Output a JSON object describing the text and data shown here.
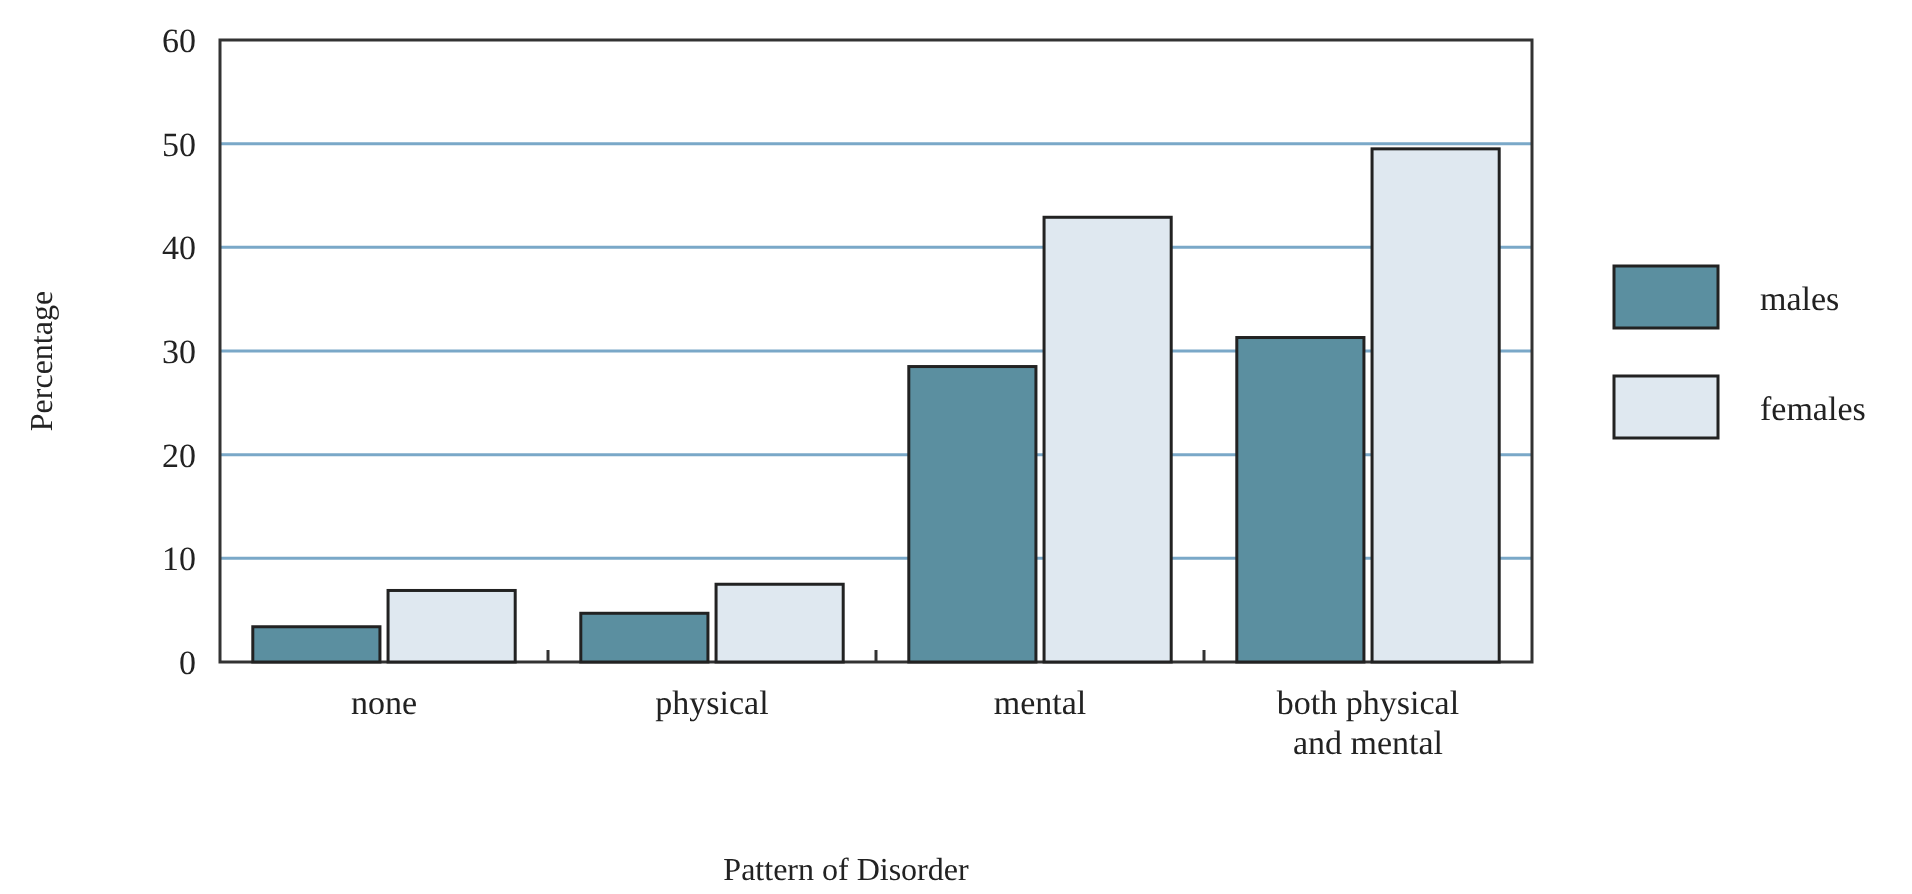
{
  "chart_data": {
    "type": "bar",
    "xlabel": "Pattern of Disorder",
    "ylabel": "Percentage",
    "categories": [
      "none",
      "physical",
      "mental",
      "both physical and mental"
    ],
    "series": [
      {
        "name": "males",
        "color": "#5b8fa0",
        "values": [
          3.4,
          4.7,
          28.5,
          31.3
        ]
      },
      {
        "name": "females",
        "color": "#dfe8f0",
        "values": [
          6.9,
          7.5,
          42.9,
          49.5
        ]
      }
    ],
    "ylim": [
      0,
      60
    ],
    "yticks": [
      0,
      10,
      20,
      30,
      40,
      50,
      60
    ],
    "grid": "y",
    "legend": "right"
  }
}
